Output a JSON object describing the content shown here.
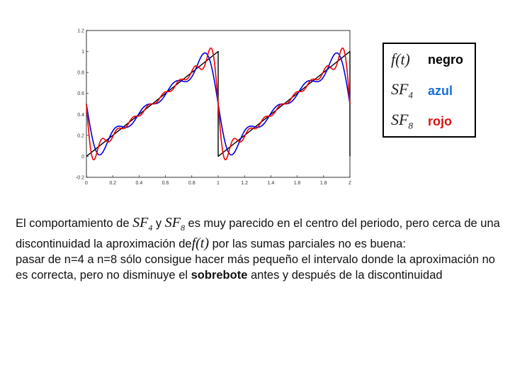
{
  "chart_data": {
    "type": "line",
    "xlim": [
      0,
      2
    ],
    "ylim": [
      -0.2,
      1.2
    ],
    "x_ticks": [
      "0",
      "0.2",
      "0.4",
      "0.6",
      "0.8",
      "1",
      "1.2",
      "1.4",
      "1.6",
      "1.8",
      "2"
    ],
    "y_ticks": [
      "-0.2",
      "0",
      "0.2",
      "0.4",
      "0.6",
      "0.8",
      "1",
      "1.2"
    ],
    "grid": false,
    "series": [
      {
        "color": "#000000",
        "function": "f(t) = t mod 1",
        "period": 1
      },
      {
        "color": "#0000dd",
        "function": "SF_4(t)",
        "harmonics": 4
      },
      {
        "color": "#ee0000",
        "function": "SF_8(t)",
        "harmonics": 8
      }
    ]
  },
  "legend": [
    {
      "symbol": "f(t)",
      "name": "negro",
      "color": "#000000"
    },
    {
      "symbol_base": "SF",
      "symbol_sub": "4",
      "name": "azul",
      "color": "#1a6fd6"
    },
    {
      "symbol_base": "SF",
      "symbol_sub": "8",
      "name": "rojo",
      "color": "#e01010"
    }
  ],
  "text": {
    "p1": "El comportamiento de",
    "m1_base": "SF",
    "m1_sub": "4",
    "p2": " y ",
    "m2_base": "SF",
    "m2_sub": "8",
    "p3": "  es muy parecido en el centro del periodo, pero cerca de una discontinuidad la aproximación de",
    "m3": "f(t)",
    "p4": " por las sumas parciales no es buena:",
    "p5": "pasar de n=4 a n=8 sólo consigue hacer más pequeño el intervalo donde la aproximación no es correcta, pero no disminuye el ",
    "p6": "sobrebote",
    "p7": " antes y después de la discontinuidad"
  }
}
